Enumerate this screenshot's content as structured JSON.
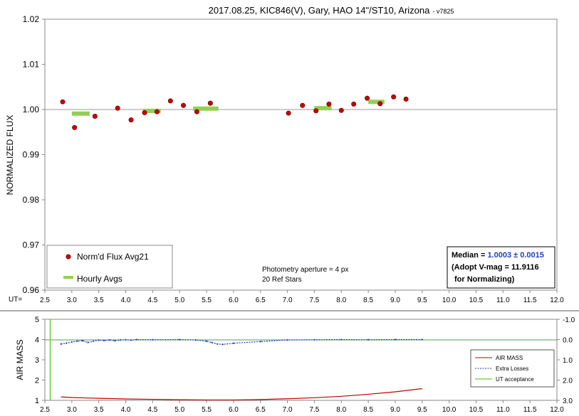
{
  "chart_data": [
    {
      "type": "scatter",
      "title": "2017.08.25, KIC846(V), Gary, HAO 14\"/ST10, Arizona",
      "title_suffix": "- v7825",
      "ylabel": "NORMALIZED FLUX",
      "x_axis_label": "UT=",
      "xlim": [
        2.5,
        12.0
      ],
      "ylim": [
        0.96,
        1.02
      ],
      "x_ticks": [
        "2.5",
        "3.0",
        "3.5",
        "4.0",
        "4.5",
        "5.0",
        "5.5",
        "6.0",
        "6.5",
        "7.0",
        "7.5",
        "8.0",
        "8.5",
        "9.0",
        "9.5",
        "10.0",
        "10.5",
        "11.0",
        "11.5",
        "12.0"
      ],
      "y_ticks": [
        "0.96",
        "0.97",
        "0.98",
        "0.99",
        "1.00",
        "1.01",
        "1.02"
      ],
      "reference_line": 1.0,
      "legend": {
        "position": "bottom-left",
        "items": [
          {
            "label": "Norm'd Flux Avg21",
            "color": "#cc0000"
          },
          {
            "label": "Hourly Avgs",
            "color": "#92d050"
          }
        ]
      },
      "series": [
        {
          "name": "Norm'd Flux Avg21",
          "points": [
            [
              2.83,
              1.0017
            ],
            [
              3.05,
              0.996
            ],
            [
              3.43,
              0.9985
            ],
            [
              3.85,
              1.0003
            ],
            [
              4.1,
              0.9977
            ],
            [
              4.35,
              0.9993
            ],
            [
              4.58,
              0.9995
            ],
            [
              4.83,
              1.0019
            ],
            [
              5.07,
              1.0009
            ],
            [
              5.32,
              0.9995
            ],
            [
              5.57,
              1.0014
            ],
            [
              7.02,
              0.9992
            ],
            [
              7.28,
              1.0009
            ],
            [
              7.53,
              0.9997
            ],
            [
              7.77,
              1.0012
            ],
            [
              8.0,
              0.9998
            ],
            [
              8.23,
              1.0012
            ],
            [
              8.48,
              1.0025
            ],
            [
              8.72,
              1.0013
            ],
            [
              8.97,
              1.0028
            ],
            [
              9.2,
              1.0023
            ]
          ]
        },
        {
          "name": "Hourly Avgs",
          "segments": [
            [
              3.0,
              3.33,
              0.9991
            ],
            [
              4.32,
              4.65,
              0.9997
            ],
            [
              5.25,
              5.72,
              1.0002
            ],
            [
              7.5,
              7.82,
              1.0003
            ],
            [
              8.5,
              8.8,
              1.0017
            ]
          ]
        }
      ],
      "annotations": [
        "Photometry aperture = 4 px",
        "20 Ref Stars"
      ],
      "median_box": {
        "median_label": "Median = ",
        "median_value": "1.0003 ± 0.0015",
        "line2": "(Adopt V-mag = 11.9116",
        "line3": "for Normalizing)"
      }
    },
    {
      "type": "line",
      "ylabel": "AIR MASS",
      "xlim": [
        2.5,
        12.0
      ],
      "ylim": [
        1,
        5
      ],
      "y2lim": [
        -1.0,
        3.0
      ],
      "x_ticks": [
        "2.5",
        "3.0",
        "3.5",
        "4.0",
        "4.5",
        "5.0",
        "5.5",
        "6.0",
        "6.5",
        "7.0",
        "7.5",
        "8.0",
        "8.5",
        "9.0",
        "9.5",
        "10.0",
        "10.5",
        "11.0",
        "11.5",
        "12.0"
      ],
      "y_ticks": [
        "1",
        "2",
        "3",
        "4",
        "5"
      ],
      "y2_ticks": [
        "-1.0",
        "0.0",
        "1.0",
        "2.0",
        "3.0"
      ],
      "legend": {
        "position": "bottom-right",
        "items": [
          {
            "label": "AIR MASS",
            "color": "#c00000"
          },
          {
            "label": "Extra Losses",
            "color": "#1f3fbf"
          },
          {
            "label": "UT acceptance",
            "color": "#66cc33"
          }
        ]
      },
      "series": [
        {
          "name": "AIR MASS",
          "x": [
            2.8,
            3.0,
            3.5,
            4.0,
            4.5,
            5.0,
            5.5,
            6.0,
            6.5,
            7.0,
            7.5,
            8.0,
            8.5,
            9.0,
            9.5
          ],
          "values": [
            1.17,
            1.14,
            1.1,
            1.07,
            1.05,
            1.03,
            1.02,
            1.02,
            1.04,
            1.08,
            1.13,
            1.2,
            1.3,
            1.42,
            1.58
          ]
        },
        {
          "name": "Extra Losses",
          "x": [
            2.8,
            2.9,
            3.0,
            3.1,
            3.2,
            3.3,
            3.4,
            3.5,
            3.6,
            3.7,
            3.8,
            3.9,
            4.0,
            4.1,
            4.2,
            4.5,
            5.0,
            5.3,
            5.5,
            5.6,
            5.7,
            5.8,
            6.0,
            6.5,
            7.0,
            7.5,
            8.0,
            8.5,
            9.0,
            9.5
          ],
          "values": [
            0.22,
            0.18,
            0.12,
            0.08,
            0.06,
            0.14,
            0.08,
            0.03,
            0.05,
            0.02,
            0.06,
            0.02,
            0.01,
            0.03,
            0.0,
            0.01,
            0.0,
            0.02,
            0.08,
            0.15,
            0.22,
            0.24,
            0.18,
            0.1,
            0.02,
            0.01,
            0.0,
            0.01,
            0.0,
            0.0
          ]
        },
        {
          "name": "UT acceptance",
          "x": [
            2.6,
            2.6
          ],
          "values": [
            1,
            5
          ]
        }
      ]
    }
  ]
}
